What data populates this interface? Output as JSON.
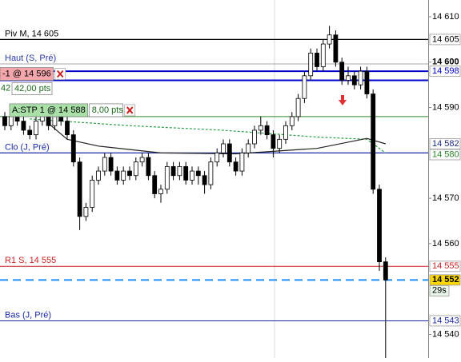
{
  "chart_data": {
    "type": "candlestick",
    "open": [
      14588,
      14586,
      14588,
      14587,
      14585,
      14584,
      14587,
      14588,
      14586,
      14588,
      14587,
      14584,
      14578,
      14566,
      14568,
      14574,
      14576,
      14579,
      14576,
      14574,
      14576,
      14575,
      14578,
      14579,
      14575,
      14571,
      14572,
      14577,
      14575,
      14577,
      14574,
      14576,
      14575,
      14573,
      14578,
      14580,
      14582,
      14578,
      14576,
      14580,
      14582,
      14585,
      14586,
      14584,
      14581,
      14583,
      14586,
      14588,
      14592,
      14597,
      14602,
      14599,
      14604,
      14606,
      14600,
      14596,
      14597,
      14595,
      14598,
      14593,
      14572,
      14556
    ],
    "high": [
      14589,
      14589,
      14589,
      14588,
      14586,
      14588,
      14589,
      14589,
      14589,
      14589,
      14588,
      14585,
      14579,
      14569,
      14575,
      14577,
      14580,
      14580,
      14577,
      14577,
      14577,
      14579,
      14580,
      14580,
      14576,
      14573,
      14578,
      14578,
      14578,
      14578,
      14577,
      14577,
      14576,
      14579,
      14581,
      14583,
      14583,
      14579,
      14581,
      14583,
      14586,
      14588,
      14587,
      14585,
      14584,
      14587,
      14589,
      14593,
      14598,
      14603,
      14603,
      14605,
      14608,
      14607,
      14601,
      14599,
      14598,
      14599,
      14599,
      14594,
      14573,
      14557
    ],
    "low": [
      14585,
      14585,
      14586,
      14584,
      14583,
      14583,
      14586,
      14585,
      14585,
      14586,
      14583,
      14577,
      14563,
      14565,
      14567,
      14573,
      14575,
      14575,
      14573,
      14573,
      14574,
      14574,
      14577,
      14574,
      14570,
      14569,
      14571,
      14574,
      14574,
      14573,
      14573,
      14573,
      14571,
      14572,
      14577,
      14579,
      14577,
      14575,
      14575,
      14579,
      14581,
      14584,
      14583,
      14579,
      14580,
      14582,
      14585,
      14587,
      14591,
      14596,
      14598,
      14598,
      14603,
      14599,
      14595,
      14595,
      14594,
      14594,
      14592,
      14571,
      14554,
      14534
    ],
    "close": [
      14586,
      14588,
      14587,
      14585,
      14584,
      14587,
      14588,
      14586,
      14588,
      14587,
      14584,
      14578,
      14566,
      14568,
      14574,
      14576,
      14579,
      14576,
      14574,
      14576,
      14575,
      14578,
      14579,
      14575,
      14571,
      14572,
      14577,
      14575,
      14577,
      14574,
      14576,
      14575,
      14573,
      14578,
      14580,
      14582,
      14578,
      14576,
      14580,
      14582,
      14585,
      14586,
      14584,
      14581,
      14583,
      14586,
      14588,
      14592,
      14597,
      14602,
      14599,
      14604,
      14606,
      14600,
      14596,
      14597,
      14595,
      14598,
      14593,
      14572,
      14556,
      14552
    ],
    "up_color": "#ffffff",
    "down_color": "#000000",
    "ylim": [
      14534.8,
      14613.7
    ],
    "yticks": [
      {
        "value": 14610,
        "label": "14 610"
      },
      {
        "value": 14600,
        "label": "14 600",
        "bold": true
      },
      {
        "value": 14590,
        "label": "14 590"
      },
      {
        "value": 14570,
        "label": "14 570"
      },
      {
        "value": 14560,
        "label": "14 560"
      },
      {
        "value": 14540,
        "label": "14 540"
      }
    ],
    "indicators": [
      {
        "color": "#2e9e4a",
        "dashed": true,
        "x": [
          4,
          20,
          35,
          50,
          58,
          61
        ],
        "values": [
          14587.5,
          14586,
          14585,
          14583.5,
          14583,
          14580
        ]
      },
      {
        "color": "#222222",
        "dashed": false,
        "x": [
          7,
          10,
          15,
          25,
          37,
          50,
          58,
          61
        ],
        "values": [
          14586.5,
          14583,
          14581.5,
          14580,
          14579.8,
          14581,
          14583.2,
          14582
        ]
      }
    ],
    "levels": [
      {
        "label": "Piv M, 14 605",
        "value": 14605,
        "color": "#000000",
        "text_color": "#000000",
        "width": 1.2
      },
      {
        "label": "Haut (S, Pré)",
        "value": 14599.6,
        "color": "#aaaaaa",
        "text_color": "#2a3aa8",
        "width": 1
      },
      {
        "value": 14598,
        "color": "#0000cc",
        "width": 2
      },
      {
        "value": 14596,
        "color": "#0000cc",
        "width": 2
      },
      {
        "value": 14588,
        "color": "#2a8a2a",
        "width": 1
      },
      {
        "label": "Clo (J, Pré)",
        "value": 14580,
        "color": "#1a2aa6",
        "text_color": "#1a2aa6",
        "width": 1.2
      },
      {
        "label": "R1 S, 14 555",
        "value": 14555,
        "color": "#cc2222",
        "text_color": "#cc2222",
        "width": 1
      },
      {
        "value": 14552,
        "color": "#1e90ff",
        "width": 2,
        "dashed": true
      },
      {
        "label": "Bas (J, Pré)",
        "value": 14543,
        "color": "#1a2aa6",
        "text_color": "#1a2aa6",
        "width": 1
      }
    ],
    "tags": [
      {
        "value": 14605,
        "label": "14 605",
        "color": "#000000",
        "background": "#ffffff"
      },
      {
        "value": 14598,
        "label": "14 598",
        "color": "#0000cc",
        "background": "#ffffff"
      },
      {
        "value": 14582,
        "label": "14 582",
        "color": "#1a2a80",
        "background": "#ffffff"
      },
      {
        "value": 14580,
        "label": "14 580",
        "color": "#2a8a2a",
        "background": "#ffffff"
      },
      {
        "value": 14555,
        "label": "14 555",
        "color": "#cc2222",
        "background": "#ffffff"
      },
      {
        "value": 14552,
        "label": "14 552",
        "color": "#000000",
        "background": "#ffd700"
      },
      {
        "value": 14543,
        "label": "14 543",
        "color": "#1a2aa6",
        "background": "#ffffff"
      }
    ],
    "timer": "29s",
    "orders": [
      {
        "value": 14596,
        "label": "-1 @ 14 596",
        "background": "#f4a6ad",
        "color": "#000000",
        "count_label": "42",
        "pts_label": "42,00 pts"
      },
      {
        "value": 14588,
        "label": "A:STP 1 @ 14 588",
        "background": "#a8e0a8",
        "color": "#000000",
        "pts_label": "8,00 pts"
      }
    ]
  }
}
